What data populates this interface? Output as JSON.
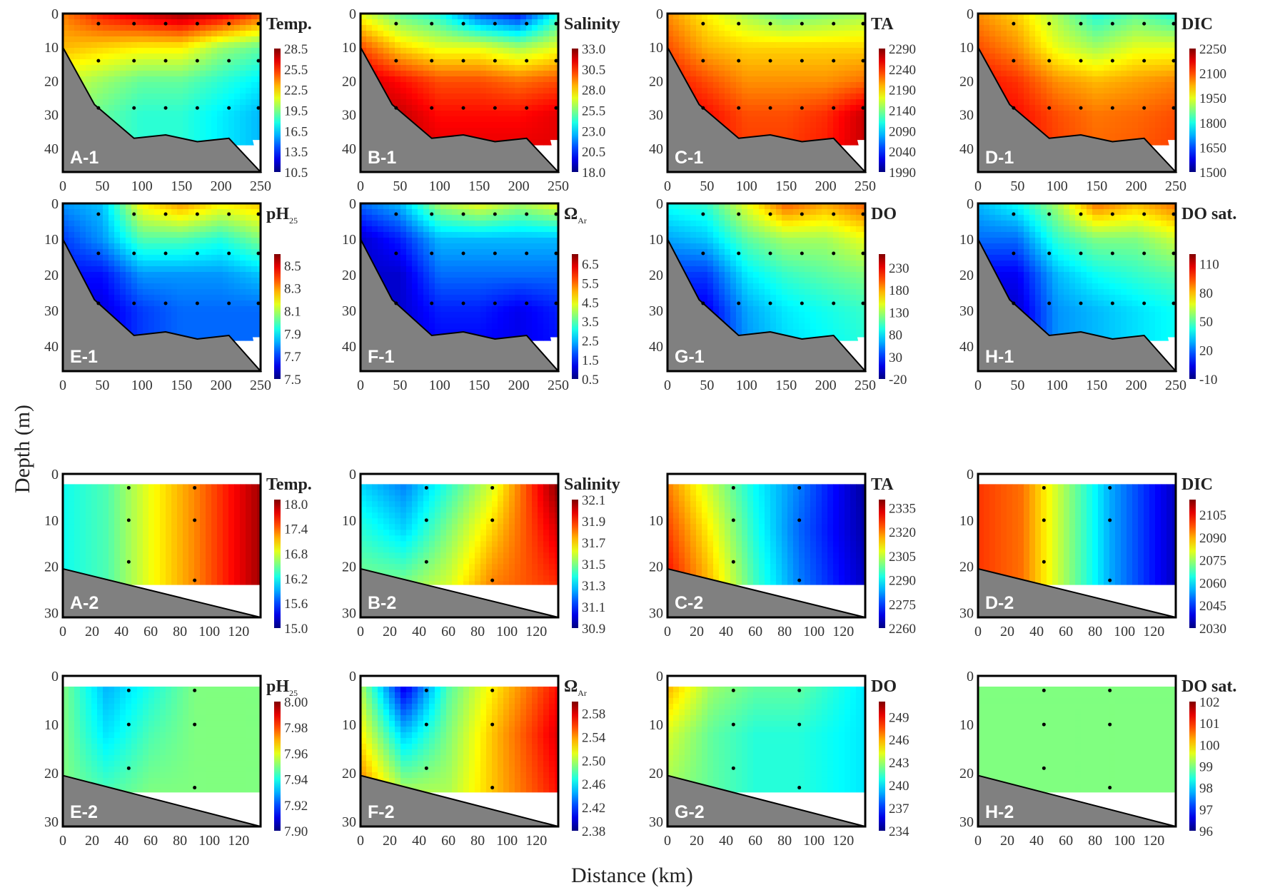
{
  "figure": {
    "ylabel": "Depth (m)",
    "xlabel": "Distance (km)"
  },
  "chart_data": [
    {
      "type": "heatmap",
      "label": "A-1",
      "title": "Temp.",
      "title_sub": "",
      "xlim": [
        0,
        250
      ],
      "ylim": [
        0,
        47
      ],
      "xticks": [
        "0",
        "50",
        "100",
        "150",
        "200",
        "250"
      ],
      "yticks": [
        "0",
        "10",
        "20",
        "30",
        "40"
      ],
      "cbar_range": [
        10.5,
        28.5
      ],
      "cbar_ticks": [
        "28.5",
        "25.5",
        "22.5",
        "19.5",
        "16.5",
        "13.5",
        "10.5"
      ],
      "grid_x": [
        0,
        50,
        100,
        150,
        200,
        250
      ],
      "grid_depth": [
        0,
        10,
        20,
        30,
        40
      ],
      "values": [
        [
          24,
          26,
          27,
          28,
          27,
          25
        ],
        [
          23,
          22.5,
          22,
          22,
          20,
          19
        ],
        [
          21,
          20,
          19,
          19,
          18,
          17
        ],
        [
          20,
          19,
          18,
          18,
          17,
          16
        ],
        [
          20,
          19,
          18,
          18,
          17,
          16
        ]
      ]
    },
    {
      "type": "heatmap",
      "label": "B-1",
      "title": "Salinity",
      "title_sub": "",
      "xlim": [
        0,
        250
      ],
      "ylim": [
        0,
        47
      ],
      "xticks": [
        "0",
        "50",
        "100",
        "150",
        "200",
        "250"
      ],
      "yticks": [
        "0",
        "10",
        "20",
        "30",
        "40"
      ],
      "cbar_range": [
        18,
        33
      ],
      "cbar_ticks": [
        "33.0",
        "30.5",
        "28.0",
        "25.5",
        "23.0",
        "20.5",
        "18.0"
      ],
      "grid_x": [
        0,
        50,
        100,
        150,
        200,
        250
      ],
      "grid_depth": [
        0,
        10,
        20,
        30,
        40
      ],
      "values": [
        [
          27,
          25,
          24,
          21,
          20,
          24
        ],
        [
          30,
          28,
          27,
          27,
          26,
          27
        ],
        [
          32,
          31,
          30,
          30,
          29.5,
          30
        ],
        [
          32,
          32,
          31,
          31,
          31,
          31.5
        ],
        [
          32,
          32,
          31.5,
          31.5,
          31.5,
          31.5
        ]
      ]
    },
    {
      "type": "heatmap",
      "label": "C-1",
      "title": "TA",
      "title_sub": "",
      "xlim": [
        0,
        250
      ],
      "ylim": [
        0,
        47
      ],
      "xticks": [
        "0",
        "50",
        "100",
        "150",
        "200",
        "250"
      ],
      "yticks": [
        "0",
        "10",
        "20",
        "30",
        "40"
      ],
      "cbar_range": [
        1990,
        2290
      ],
      "cbar_ticks": [
        "2290",
        "2240",
        "2190",
        "2140",
        "2090",
        "2040",
        "1990"
      ],
      "grid_x": [
        0,
        50,
        100,
        150,
        200,
        250
      ],
      "grid_depth": [
        0,
        10,
        20,
        30,
        40
      ],
      "values": [
        [
          2210,
          2180,
          2150,
          2130,
          2140,
          2150
        ],
        [
          2230,
          2200,
          2190,
          2190,
          2190,
          2190
        ],
        [
          2250,
          2230,
          2210,
          2210,
          2210,
          2220
        ],
        [
          2260,
          2250,
          2230,
          2230,
          2240,
          2270
        ],
        [
          2260,
          2250,
          2235,
          2235,
          2245,
          2270
        ]
      ]
    },
    {
      "type": "heatmap",
      "label": "D-1",
      "title": "DIC",
      "title_sub": "",
      "xlim": [
        0,
        250
      ],
      "ylim": [
        0,
        47
      ],
      "xticks": [
        "0",
        "50",
        "100",
        "150",
        "200",
        "250"
      ],
      "yticks": [
        "0",
        "10",
        "20",
        "30",
        "40"
      ],
      "cbar_range": [
        1500,
        2250
      ],
      "cbar_ticks": [
        "2250",
        "2100",
        "1950",
        "1800",
        "1650",
        "1500"
      ],
      "grid_x": [
        0,
        50,
        100,
        150,
        200,
        250
      ],
      "grid_depth": [
        0,
        10,
        20,
        30,
        40
      ],
      "values": [
        [
          2050,
          2000,
          1900,
          1800,
          1850,
          1800
        ],
        [
          2100,
          2050,
          1950,
          1900,
          1950,
          1950
        ],
        [
          2150,
          2120,
          2050,
          2020,
          2040,
          2060
        ],
        [
          2150,
          2150,
          2100,
          2070,
          2080,
          2100
        ],
        [
          2150,
          2150,
          2110,
          2080,
          2090,
          2110
        ]
      ]
    },
    {
      "type": "heatmap",
      "label": "E-1",
      "title": "pH",
      "title_sub": "25",
      "xlim": [
        0,
        250
      ],
      "ylim": [
        0,
        47
      ],
      "xticks": [
        "0",
        "50",
        "100",
        "150",
        "200",
        "250"
      ],
      "yticks": [
        "0",
        "10",
        "20",
        "30",
        "40"
      ],
      "cbar_range": [
        7.5,
        8.6
      ],
      "cbar_ticks": [
        "8.5",
        "8.3",
        "8.1",
        "7.9",
        "7.7",
        "7.5"
      ],
      "grid_x": [
        0,
        50,
        100,
        150,
        200,
        250
      ],
      "grid_depth": [
        0,
        10,
        20,
        30,
        40
      ],
      "values": [
        [
          7.8,
          7.85,
          8.2,
          8.3,
          8.2,
          8.25
        ],
        [
          7.7,
          7.8,
          8.0,
          8.0,
          7.95,
          8.05
        ],
        [
          7.65,
          7.65,
          7.8,
          7.8,
          7.8,
          7.85
        ],
        [
          7.6,
          7.6,
          7.7,
          7.75,
          7.75,
          7.75
        ],
        [
          7.6,
          7.6,
          7.7,
          7.75,
          7.75,
          7.75
        ]
      ]
    },
    {
      "type": "heatmap",
      "label": "F-1",
      "title": "Ω",
      "title_sub": "Ar",
      "xlim": [
        0,
        250
      ],
      "ylim": [
        0,
        47
      ],
      "xticks": [
        "0",
        "50",
        "100",
        "150",
        "200",
        "250"
      ],
      "yticks": [
        "0",
        "10",
        "20",
        "30",
        "40"
      ],
      "cbar_range": [
        0.5,
        7
      ],
      "cbar_ticks": [
        "6.5",
        "5.5",
        "4.5",
        "3.5",
        "2.5",
        "1.5",
        "0.5"
      ],
      "grid_x": [
        0,
        50,
        100,
        150,
        200,
        250
      ],
      "grid_depth": [
        0,
        10,
        20,
        30,
        40
      ],
      "values": [
        [
          2,
          2.5,
          4,
          4.5,
          4,
          4.5
        ],
        [
          1,
          1.5,
          2.5,
          2.5,
          2.5,
          2.5
        ],
        [
          1,
          1,
          2,
          2,
          2,
          2
        ],
        [
          1,
          1,
          1.5,
          1.5,
          1.2,
          1.5
        ],
        [
          1,
          1,
          1.3,
          1.3,
          1.2,
          1.4
        ]
      ]
    },
    {
      "type": "heatmap",
      "label": "G-1",
      "title": "DO",
      "title_sub": "",
      "xlim": [
        0,
        250
      ],
      "ylim": [
        0,
        47
      ],
      "xticks": [
        "0",
        "50",
        "100",
        "150",
        "200",
        "250"
      ],
      "yticks": [
        "0",
        "10",
        "20",
        "30",
        "40"
      ],
      "cbar_range": [
        -20,
        260
      ],
      "cbar_ticks": [
        "230",
        "180",
        "130",
        "80",
        "30",
        "-20"
      ],
      "grid_x": [
        0,
        50,
        100,
        150,
        200,
        250
      ],
      "grid_depth": [
        0,
        10,
        20,
        30,
        40
      ],
      "values": [
        [
          90,
          100,
          150,
          200,
          180,
          200
        ],
        [
          60,
          70,
          110,
          130,
          130,
          150
        ],
        [
          30,
          30,
          80,
          100,
          110,
          120
        ],
        [
          10,
          10,
          60,
          80,
          90,
          100
        ],
        [
          10,
          10,
          55,
          75,
          85,
          95
        ]
      ]
    },
    {
      "type": "heatmap",
      "label": "H-1",
      "title": "DO sat.",
      "title_sub": "",
      "xlim": [
        0,
        250
      ],
      "ylim": [
        0,
        47
      ],
      "xticks": [
        "0",
        "50",
        "100",
        "150",
        "200",
        "250"
      ],
      "yticks": [
        "0",
        "10",
        "20",
        "30",
        "40"
      ],
      "cbar_range": [
        -10,
        120
      ],
      "cbar_ticks": [
        "110",
        "80",
        "50",
        "20",
        "-10"
      ],
      "grid_x": [
        0,
        50,
        100,
        150,
        200,
        250
      ],
      "grid_depth": [
        0,
        10,
        20,
        30,
        40
      ],
      "values": [
        [
          30,
          40,
          60,
          90,
          80,
          90
        ],
        [
          20,
          20,
          45,
          55,
          55,
          65
        ],
        [
          5,
          5,
          30,
          40,
          45,
          50
        ],
        [
          0,
          0,
          25,
          30,
          35,
          40
        ],
        [
          0,
          0,
          25,
          30,
          35,
          40
        ]
      ]
    },
    {
      "type": "heatmap",
      "label": "A-2",
      "title": "Temp.",
      "title_sub": "",
      "xlim": [
        0,
        135
      ],
      "ylim": [
        0,
        31
      ],
      "xticks": [
        "0",
        "20",
        "40",
        "60",
        "80",
        "100",
        "120"
      ],
      "yticks": [
        "0",
        "10",
        "20",
        "30"
      ],
      "cbar_range": [
        15,
        18.1
      ],
      "cbar_ticks": [
        "18.0",
        "17.4",
        "16.8",
        "16.2",
        "15.6",
        "15.0"
      ],
      "grid_x": [
        0,
        30,
        60,
        90,
        135
      ],
      "grid_depth": [
        2,
        12,
        24
      ],
      "values": [
        [
          16.2,
          16.4,
          16.9,
          17.3,
          18.0
        ],
        [
          16.2,
          16.4,
          16.9,
          17.3,
          18.0
        ],
        [
          16.2,
          16.4,
          16.9,
          17.3,
          18.0
        ]
      ]
    },
    {
      "type": "heatmap",
      "label": "B-2",
      "title": "Salinity",
      "title_sub": "",
      "xlim": [
        0,
        135
      ],
      "ylim": [
        0,
        31
      ],
      "xticks": [
        "0",
        "20",
        "40",
        "60",
        "80",
        "100",
        "120"
      ],
      "yticks": [
        "0",
        "10",
        "20",
        "30"
      ],
      "cbar_range": [
        30.9,
        32.1
      ],
      "cbar_ticks": [
        "32.1",
        "31.9",
        "31.7",
        "31.5",
        "31.3",
        "31.1",
        "30.9"
      ],
      "grid_x": [
        0,
        30,
        60,
        90,
        135
      ],
      "grid_depth": [
        2,
        12,
        24
      ],
      "values": [
        [
          31.3,
          31.2,
          31.4,
          31.6,
          32.1
        ],
        [
          31.4,
          31.3,
          31.5,
          31.7,
          32.0
        ],
        [
          31.5,
          31.5,
          31.6,
          31.8,
          31.9
        ]
      ]
    },
    {
      "type": "heatmap",
      "label": "C-2",
      "title": "TA",
      "title_sub": "",
      "xlim": [
        0,
        135
      ],
      "ylim": [
        0,
        31
      ],
      "xticks": [
        "0",
        "20",
        "40",
        "60",
        "80",
        "100",
        "120"
      ],
      "yticks": [
        "10",
        "20",
        "30"
      ],
      "cbar_range": [
        2260,
        2340
      ],
      "cbar_ticks": [
        "2335",
        "2320",
        "2305",
        "2290",
        "2275",
        "2260"
      ],
      "grid_x": [
        0,
        30,
        60,
        90,
        135
      ],
      "grid_depth": [
        2,
        12,
        24
      ],
      "values": [
        [
          2320,
          2305,
          2290,
          2280,
          2262
        ],
        [
          2325,
          2310,
          2292,
          2278,
          2263
        ],
        [
          2330,
          2315,
          2295,
          2280,
          2265
        ]
      ]
    },
    {
      "type": "heatmap",
      "label": "D-2",
      "title": "DIC",
      "title_sub": "",
      "xlim": [
        0,
        135
      ],
      "ylim": [
        0,
        31
      ],
      "xticks": [
        "0",
        "20",
        "40",
        "60",
        "80",
        "100",
        "120"
      ],
      "yticks": [
        "0",
        "10",
        "20",
        "30"
      ],
      "cbar_range": [
        2030,
        2115
      ],
      "cbar_ticks": [
        "2105",
        "2090",
        "2075",
        "2060",
        "2045",
        "2030"
      ],
      "grid_x": [
        0,
        30,
        60,
        90,
        135
      ],
      "grid_depth": [
        2,
        12,
        24
      ],
      "values": [
        [
          2100,
          2095,
          2075,
          2055,
          2035
        ],
        [
          2100,
          2095,
          2075,
          2055,
          2035
        ],
        [
          2100,
          2095,
          2075,
          2055,
          2035
        ]
      ]
    },
    {
      "type": "heatmap",
      "label": "E-2",
      "title": "pH",
      "title_sub": "25",
      "xlim": [
        0,
        135
      ],
      "ylim": [
        0,
        31
      ],
      "xticks": [
        "0",
        "20",
        "40",
        "60",
        "80",
        "100",
        "120"
      ],
      "yticks": [
        "0",
        "10",
        "20",
        "30"
      ],
      "cbar_range": [
        7.9,
        8.0
      ],
      "cbar_ticks": [
        "8.00",
        "7.98",
        "7.96",
        "7.94",
        "7.92",
        "7.90"
      ],
      "grid_x": [
        0,
        30,
        60,
        90,
        135
      ],
      "grid_depth": [
        2,
        12,
        24
      ],
      "values": [
        [
          7.95,
          7.93,
          7.94,
          7.95,
          7.95
        ],
        [
          7.95,
          7.935,
          7.945,
          7.95,
          7.95
        ],
        [
          7.95,
          7.945,
          7.95,
          7.95,
          7.95
        ]
      ]
    },
    {
      "type": "heatmap",
      "label": "F-2",
      "title": "Ω",
      "title_sub": "Ar",
      "xlim": [
        0,
        135
      ],
      "ylim": [
        0,
        31
      ],
      "xticks": [
        "0",
        "20",
        "40",
        "60",
        "80",
        "100",
        "120"
      ],
      "yticks": [
        "0",
        "10",
        "20",
        "30"
      ],
      "cbar_range": [
        2.38,
        2.6
      ],
      "cbar_ticks": [
        "2.58",
        "2.54",
        "2.50",
        "2.46",
        "2.42",
        "2.38"
      ],
      "grid_x": [
        0,
        30,
        60,
        90,
        135
      ],
      "grid_depth": [
        2,
        12,
        24
      ],
      "values": [
        [
          2.5,
          2.4,
          2.48,
          2.52,
          2.57
        ],
        [
          2.52,
          2.45,
          2.49,
          2.53,
          2.58
        ],
        [
          2.55,
          2.5,
          2.5,
          2.53,
          2.57
        ]
      ]
    },
    {
      "type": "heatmap",
      "label": "G-2",
      "title": "DO",
      "title_sub": "",
      "xlim": [
        0,
        135
      ],
      "ylim": [
        0,
        31
      ],
      "xticks": [
        "0",
        "20",
        "40",
        "60",
        "80",
        "100",
        "120"
      ],
      "yticks": [
        "0",
        "10",
        "20",
        "30"
      ],
      "cbar_range": [
        234,
        251
      ],
      "cbar_ticks": [
        "249",
        "246",
        "243",
        "240",
        "237",
        "234"
      ],
      "grid_x": [
        0,
        30,
        60,
        90,
        135
      ],
      "grid_depth": [
        2,
        12,
        24
      ],
      "values": [
        [
          246,
          243,
          242,
          242,
          240
        ],
        [
          244,
          242,
          241,
          241,
          240
        ],
        [
          243,
          242,
          241,
          241,
          240
        ]
      ]
    },
    {
      "type": "heatmap",
      "label": "H-2",
      "title": "DO sat.",
      "title_sub": "",
      "xlim": [
        0,
        135
      ],
      "ylim": [
        0,
        31
      ],
      "xticks": [
        "0",
        "20",
        "40",
        "60",
        "80",
        "100",
        "120"
      ],
      "yticks": [
        "0",
        "10",
        "20",
        "30"
      ],
      "cbar_range": [
        96,
        102
      ],
      "cbar_ticks": [
        "102",
        "101",
        "100",
        "99",
        "98",
        "97",
        "96"
      ],
      "grid_x": [
        0,
        30,
        60,
        90,
        135
      ],
      "grid_depth": [
        2,
        12,
        24
      ],
      "values": [
        [
          99,
          99,
          99,
          99,
          99
        ],
        [
          99,
          99,
          99,
          99,
          99
        ],
        [
          99,
          99,
          99,
          99,
          99
        ]
      ]
    }
  ]
}
